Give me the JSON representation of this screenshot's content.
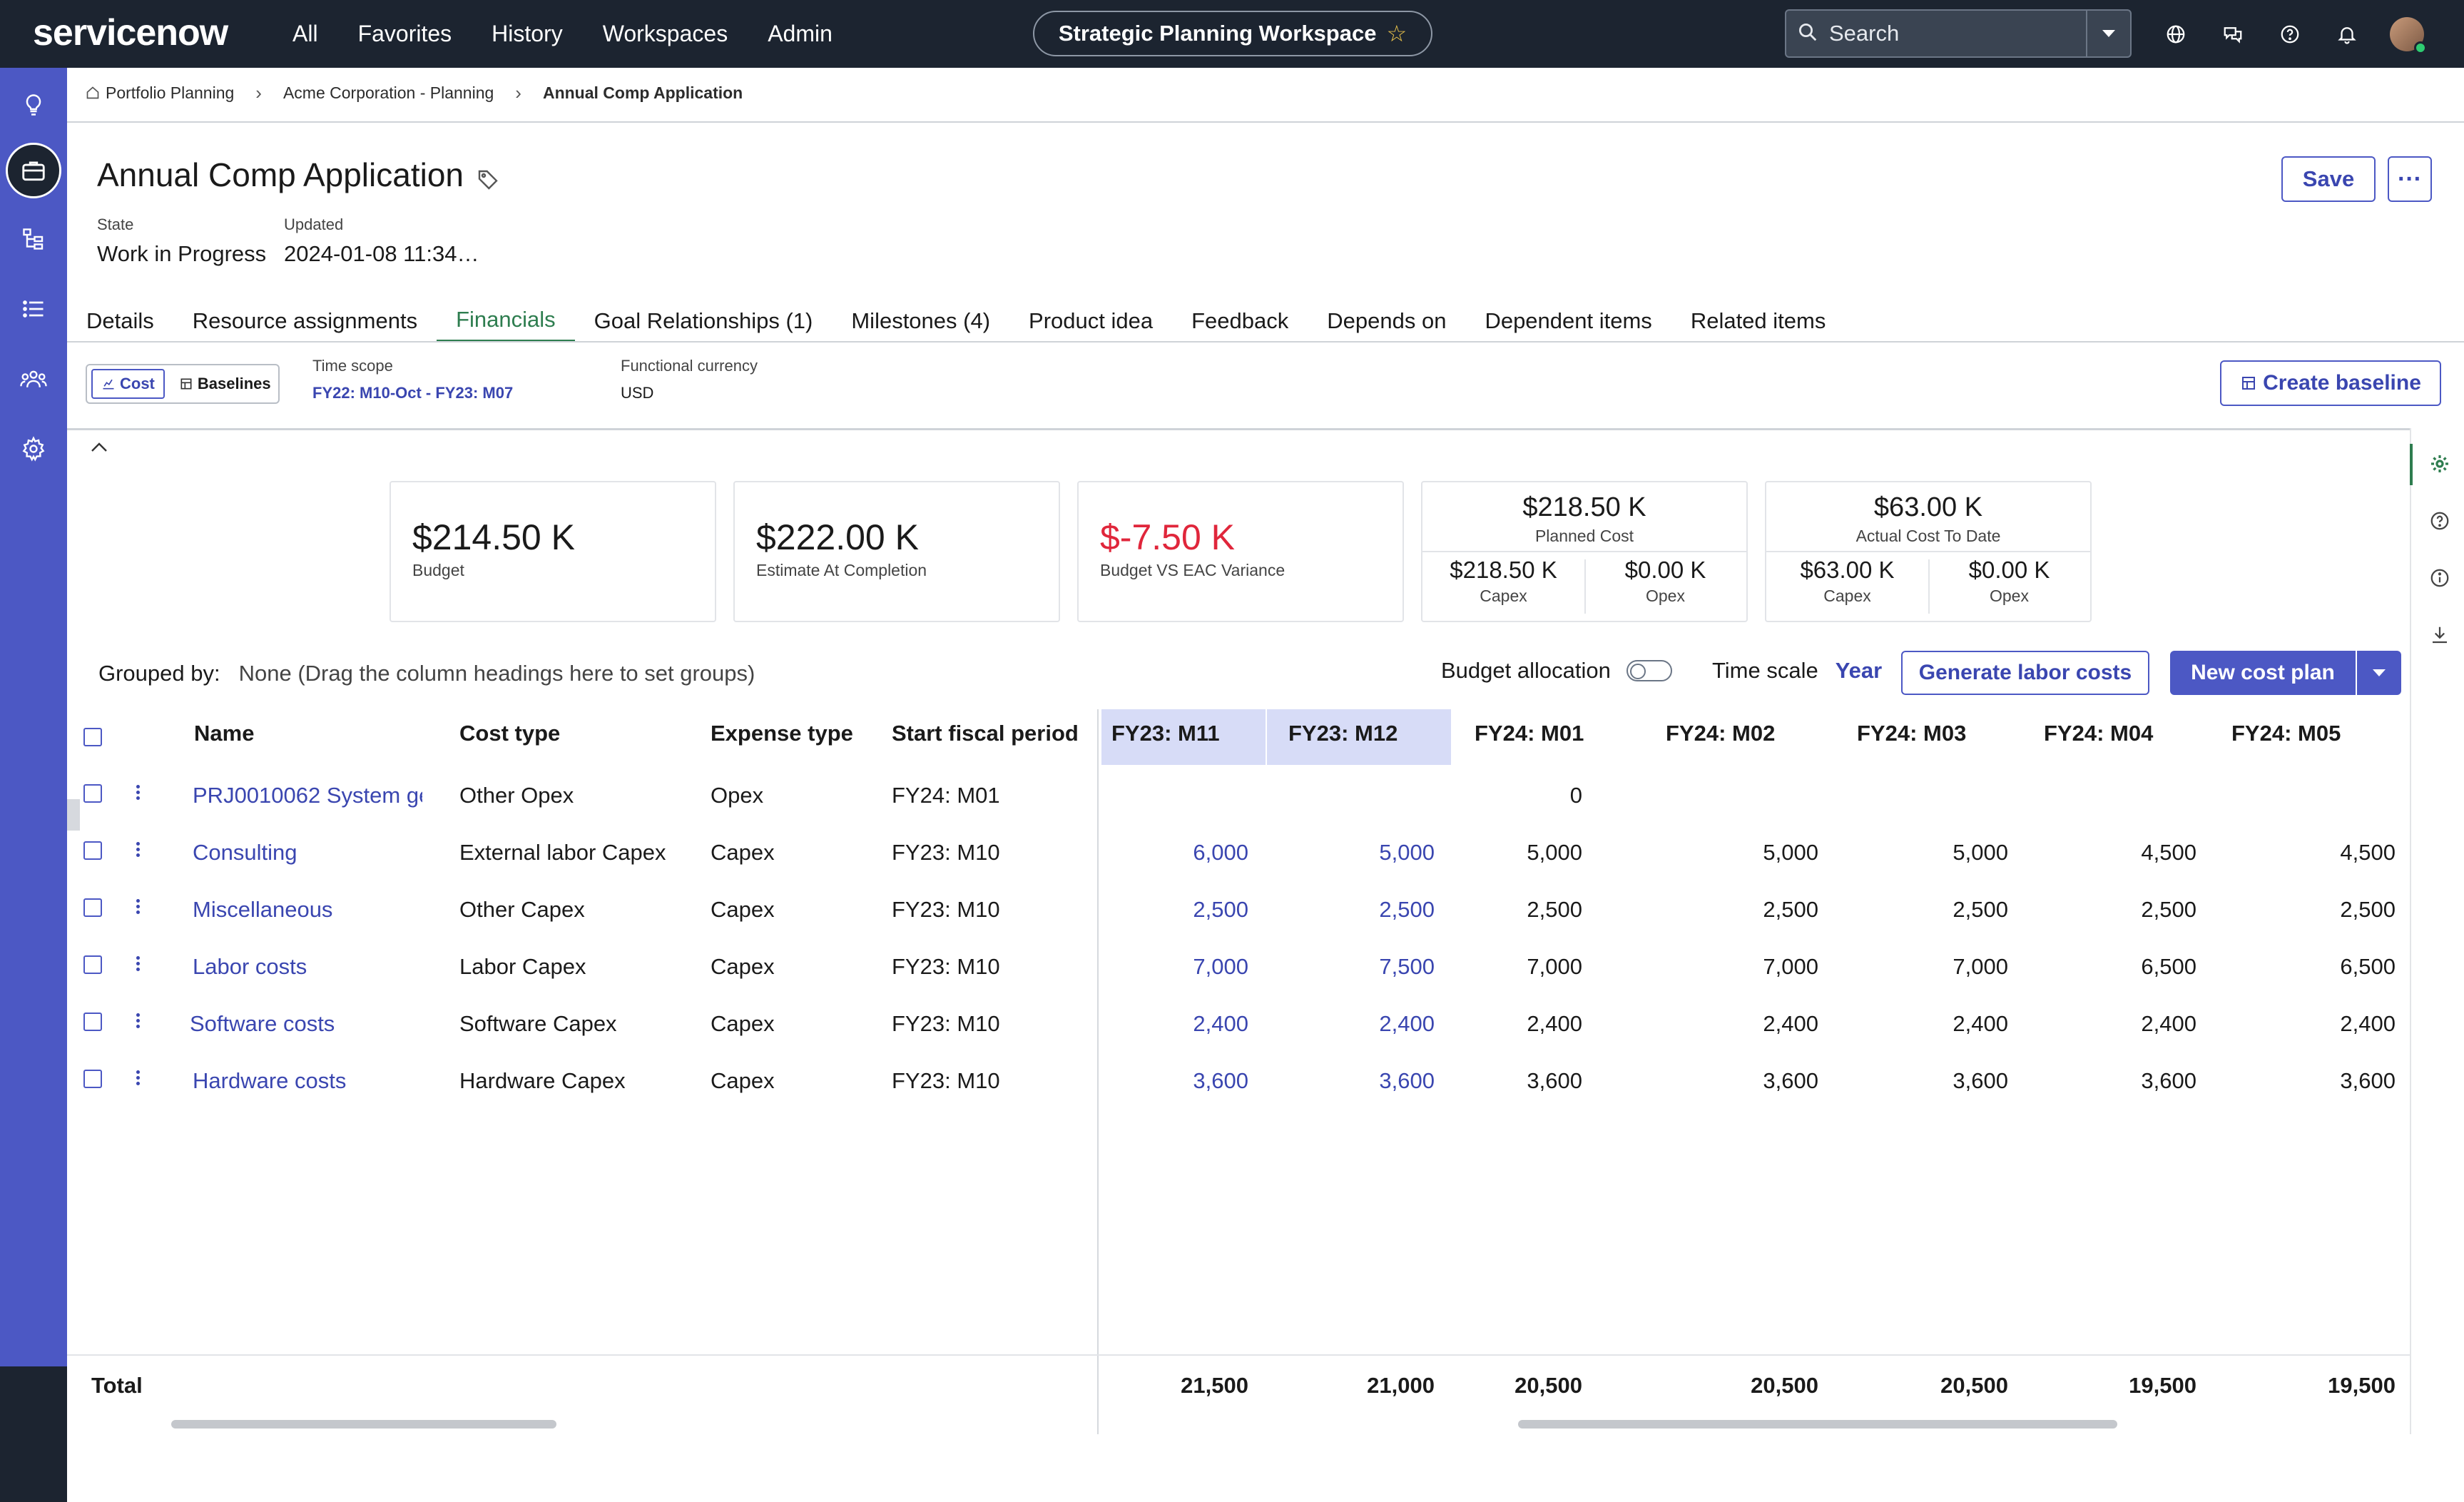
{
  "app": {
    "brand": "servicenow",
    "nav": [
      "All",
      "Favorites",
      "History",
      "Workspaces",
      "Admin"
    ],
    "workspace": "Strategic Planning Workspace",
    "search_placeholder": "Search",
    "colors": {
      "topbar": "#1c2430",
      "rail": "#4c58c4",
      "accent": "#3a46b0",
      "active_tab": "#2e7d4f",
      "negative": "#e0263b"
    }
  },
  "breadcrumb": [
    "Portfolio Planning",
    "Acme Corporation - Planning",
    "Annual Comp Application"
  ],
  "record": {
    "title": "Annual Comp Application",
    "state_label": "State",
    "state_value": "Work in Progress",
    "updated_label": "Updated",
    "updated_value": "2024-01-08 11:34…",
    "save_label": "Save",
    "more_label": "···"
  },
  "tabs": [
    "Details",
    "Resource assignments",
    "Financials",
    "Goal Relationships (1)",
    "Milestones (4)",
    "Product idea",
    "Feedback",
    "Depends on",
    "Dependent items",
    "Related items"
  ],
  "active_tab": "Financials",
  "toolbar": {
    "cost_label": "Cost",
    "baselines_label": "Baselines",
    "time_scope_label": "Time scope",
    "time_scope_value": "FY22: M10-Oct - FY23: M07",
    "currency_label": "Functional currency",
    "currency_value": "USD",
    "create_baseline": "Create baseline"
  },
  "cards": {
    "budget": {
      "value": "$214.50 K",
      "label": "Budget"
    },
    "eac": {
      "value": "$222.00 K",
      "label": "Estimate At Completion"
    },
    "variance": {
      "value": "$-7.50 K",
      "label": "Budget VS EAC Variance"
    },
    "planned": {
      "value": "$218.50 K",
      "label": "Planned Cost",
      "capex_value": "$218.50 K",
      "capex_label": "Capex",
      "opex_value": "$0.00 K",
      "opex_label": "Opex"
    },
    "actual": {
      "value": "$63.00 K",
      "label": "Actual Cost To Date",
      "capex_value": "$63.00 K",
      "capex_label": "Capex",
      "opex_value": "$0.00 K",
      "opex_label": "Opex"
    }
  },
  "grid_toolbar": {
    "grouped_label": "Grouped by:",
    "grouped_hint": "None (Drag the column headings here to set groups)",
    "budget_allocation": "Budget allocation",
    "time_scale_label": "Time scale",
    "time_scale_value": "Year",
    "generate_labor": "Generate labor costs",
    "new_cost_plan": "New cost plan"
  },
  "grid": {
    "columns": [
      "Name",
      "Cost type",
      "Expense type",
      "Start fiscal period",
      "FY23: M11",
      "FY23: M12",
      "FY24: M01",
      "FY24: M02",
      "FY24: M03",
      "FY24: M04",
      "FY24: M05"
    ],
    "rows": [
      {
        "name": "PRJ0010062 System ge",
        "cost_type": "Other Opex",
        "expense_type": "Opex",
        "start": "FY24: M01",
        "m": [
          "",
          "",
          "0",
          "",
          "",
          "",
          ""
        ]
      },
      {
        "name": "Consulting",
        "cost_type": "External labor Capex",
        "expense_type": "Capex",
        "start": "FY23: M10",
        "m": [
          "6,000",
          "5,000",
          "5,000",
          "5,000",
          "5,000",
          "4,500",
          "4,500"
        ]
      },
      {
        "name": "Miscellaneous",
        "cost_type": "Other Capex",
        "expense_type": "Capex",
        "start": "FY23: M10",
        "m": [
          "2,500",
          "2,500",
          "2,500",
          "2,500",
          "2,500",
          "2,500",
          "2,500"
        ]
      },
      {
        "name": "Labor costs",
        "cost_type": "Labor Capex",
        "expense_type": "Capex",
        "start": "FY23: M10",
        "m": [
          "7,000",
          "7,500",
          "7,000",
          "7,000",
          "7,000",
          "6,500",
          "6,500"
        ]
      },
      {
        "name": "Software costs",
        "cost_type": "Software Capex",
        "expense_type": "Capex",
        "start": "FY23: M10",
        "m": [
          "2,400",
          "2,400",
          "2,400",
          "2,400",
          "2,400",
          "2,400",
          "2,400"
        ]
      },
      {
        "name": "Hardware costs",
        "cost_type": "Hardware Capex",
        "expense_type": "Capex",
        "start": "FY23: M10",
        "m": [
          "3,600",
          "3,600",
          "3,600",
          "3,600",
          "3,600",
          "3,600",
          "3,600"
        ]
      }
    ],
    "total_label": "Total",
    "totals": [
      "21,500",
      "21,000",
      "20,500",
      "20,500",
      "20,500",
      "19,500",
      "19,500"
    ]
  }
}
